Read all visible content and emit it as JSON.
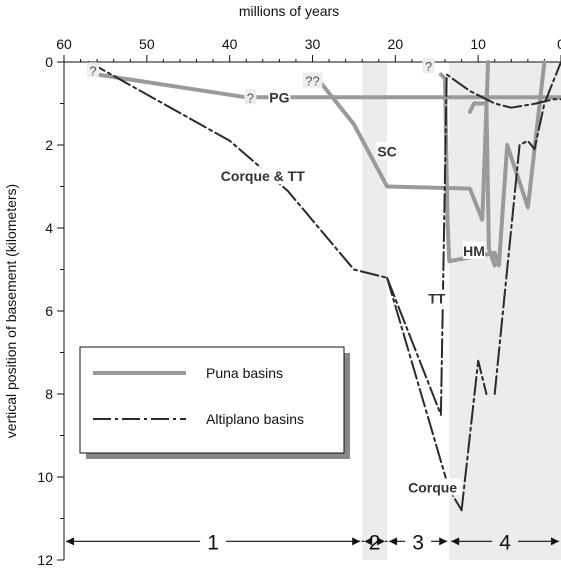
{
  "chart_data": {
    "type": "line",
    "title": "",
    "xlabel": "millions of years",
    "ylabel": "vertical position of basement (kilometers)",
    "xlim": [
      60,
      0
    ],
    "ylim": [
      0,
      12
    ],
    "x_reversed": true,
    "y_inverted": true,
    "x_ticks": [
      60,
      50,
      40,
      30,
      20,
      10,
      0
    ],
    "x_tick_labels": [
      "60",
      "50",
      "40",
      "30",
      "20",
      "10",
      "0"
    ],
    "y_ticks": [
      0,
      2,
      4,
      6,
      8,
      10,
      12
    ],
    "y_tick_labels": [
      "0",
      "2",
      "4",
      "6",
      "8",
      "10",
      "12"
    ],
    "colors": {
      "puna": "#9a9a9a",
      "altiplano": "#2a2a2a",
      "shade": "#ececec"
    },
    "shaded_periods": [
      {
        "x0": 24,
        "x1": 21
      },
      {
        "x0": 13.5,
        "x1": 0
      }
    ],
    "periods": [
      {
        "label": "1",
        "x0": 60,
        "x1": 24
      },
      {
        "label": "2",
        "x0": 24,
        "x1": 21
      },
      {
        "label": "3",
        "x0": 21,
        "x1": 13.5
      },
      {
        "label": "4",
        "x0": 13.5,
        "x1": 0
      }
    ],
    "series": [
      {
        "name": "Puna basins",
        "style": "solid",
        "group": "puna",
        "points": [
          [
            56,
            0.3
          ],
          [
            38,
            0.85
          ],
          [
            0,
            0.85
          ]
        ]
      },
      {
        "group": "puna",
        "style": "solid",
        "points": [
          [
            29,
            0.5
          ],
          [
            25,
            1.5
          ],
          [
            21,
            3.0
          ],
          [
            11,
            3.05
          ],
          [
            9.5,
            3.8
          ],
          [
            8.8,
            0
          ]
        ]
      },
      {
        "group": "puna",
        "style": "solid",
        "points": [
          [
            14.5,
            0.3
          ],
          [
            14,
            0.4
          ],
          [
            13.7,
            3.8
          ],
          [
            13.5,
            4.8
          ],
          [
            8,
            4.6
          ],
          [
            7.5,
            4.9
          ],
          [
            6.5,
            2.0
          ],
          [
            4,
            3.5
          ],
          [
            2,
            0
          ]
        ]
      },
      {
        "group": "puna",
        "style": "solid",
        "points": [
          [
            11,
            1.2
          ],
          [
            10.5,
            1.0
          ],
          [
            9,
            1.0
          ],
          [
            8.7,
            4.5
          ],
          [
            8,
            4.9
          ]
        ]
      },
      {
        "name": "Altiplano basins",
        "style": "dashdot",
        "group": "altiplano",
        "points": [
          [
            57,
            0
          ],
          [
            40,
            1.9
          ],
          [
            33,
            3.1
          ],
          [
            25,
            5.0
          ],
          [
            21,
            5.2
          ],
          [
            14.5,
            8.5
          ],
          [
            13.8,
            0.3
          ],
          [
            11,
            0.7
          ],
          [
            8,
            1.0
          ],
          [
            6,
            1.1
          ],
          [
            3,
            1.0
          ],
          [
            1,
            0.9
          ],
          [
            0,
            0.9
          ]
        ]
      },
      {
        "group": "altiplano",
        "style": "dashdot",
        "points": [
          [
            21,
            5.2
          ],
          [
            13.5,
            10.3
          ],
          [
            12,
            10.8
          ]
        ]
      },
      {
        "group": "altiplano",
        "style": "dashdot",
        "points": [
          [
            12,
            10.8
          ],
          [
            10,
            7.2
          ],
          [
            9,
            8.0
          ]
        ]
      },
      {
        "group": "altiplano",
        "style": "dashdot",
        "points": [
          [
            8,
            8.0
          ],
          [
            5,
            2.0
          ],
          [
            4,
            1.9
          ],
          [
            3.2,
            2.1
          ],
          [
            2,
            1.0
          ],
          [
            0,
            0
          ]
        ]
      }
    ],
    "annotations": [
      {
        "text": "PG",
        "x": 34,
        "y": 0.9,
        "group": "puna"
      },
      {
        "text": "SC",
        "x": 21,
        "y": 2.2,
        "group": "puna"
      },
      {
        "text": "HM",
        "x": 10.5,
        "y": 4.6,
        "group": "puna"
      },
      {
        "text": "TT",
        "x": 15,
        "y": 5.75,
        "group": "altiplano"
      },
      {
        "text": "Corque & TT",
        "x": 36,
        "y": 2.8,
        "group": "altiplano"
      },
      {
        "text": "Corque",
        "x": 15.5,
        "y": 10.3,
        "group": "altiplano"
      }
    ],
    "question_marks": [
      {
        "text": "?",
        "x": 56.5,
        "y": 0.2
      },
      {
        "text": "?",
        "x": 37.5,
        "y": 0.85
      },
      {
        "text": "??",
        "x": 30,
        "y": 0.45
      },
      {
        "text": "?",
        "x": 16,
        "y": 0.1
      }
    ],
    "legend": {
      "placement": "lower-left",
      "entries": [
        {
          "label": "Puna basins",
          "group": "puna",
          "style": "solid"
        },
        {
          "label": "Altiplano basins",
          "group": "altiplano",
          "style": "dashdot"
        }
      ]
    }
  }
}
